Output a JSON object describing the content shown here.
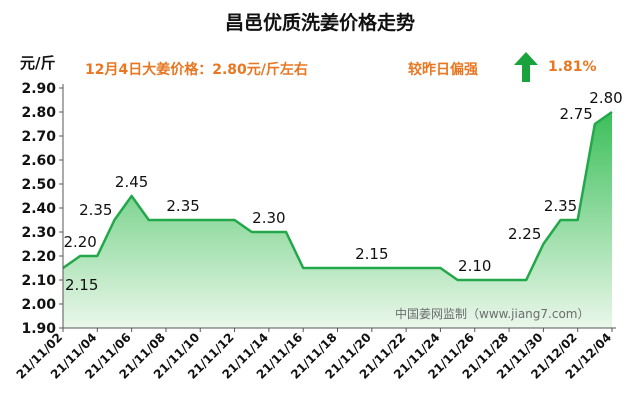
{
  "chart_data": {
    "type": "area",
    "title": "昌邑优质洗姜价格走势",
    "ylabel": "元/斤",
    "annotation": "12月4日大姜价格：2.80元/斤左右",
    "compare_label": "较昨日偏强",
    "change": "1.81%",
    "trend": "up",
    "watermark": "中国姜网监制（www.jiang7.com）",
    "ylim": [
      1.9,
      2.9
    ],
    "yticks": [
      "1.90",
      "2.00",
      "2.10",
      "2.20",
      "2.30",
      "2.40",
      "2.50",
      "2.60",
      "2.70",
      "2.80",
      "2.90"
    ],
    "xticks": [
      "21/11/02",
      "21/11/04",
      "21/11/06",
      "21/11/08",
      "21/11/10",
      "21/11/12",
      "21/11/14",
      "21/11/16",
      "21/11/18",
      "21/11/20",
      "21/11/22",
      "21/11/24",
      "21/11/26",
      "21/11/28",
      "21/11/30",
      "21/12/02",
      "21/12/04"
    ],
    "series": [
      {
        "x": [
          "21/11/02",
          "21/11/03",
          "21/11/04",
          "21/11/05",
          "21/11/06",
          "21/11/07",
          "21/11/08",
          "21/11/09",
          "21/11/10",
          "21/11/11",
          "21/11/12",
          "21/11/13",
          "21/11/14",
          "21/11/15",
          "21/11/16",
          "21/11/17",
          "21/11/18",
          "21/11/19",
          "21/11/20",
          "21/11/21",
          "21/11/22",
          "21/11/23",
          "21/11/24",
          "21/11/25",
          "21/11/26",
          "21/11/27",
          "21/11/28",
          "21/11/29",
          "21/11/30",
          "21/12/01",
          "21/12/02",
          "21/12/03",
          "21/12/04"
        ],
        "values": [
          2.15,
          2.2,
          2.2,
          2.35,
          2.45,
          2.35,
          2.35,
          2.35,
          2.35,
          2.35,
          2.35,
          2.3,
          2.3,
          2.3,
          2.15,
          2.15,
          2.15,
          2.15,
          2.15,
          2.15,
          2.15,
          2.15,
          2.15,
          2.1,
          2.1,
          2.1,
          2.1,
          2.1,
          2.25,
          2.35,
          2.35,
          2.75,
          2.8
        ]
      }
    ],
    "data_labels": [
      {
        "x": "21/11/02",
        "text": "2.15",
        "pos": "below"
      },
      {
        "x": "21/11/03",
        "text": "2.20",
        "pos": "above"
      },
      {
        "x": "21/11/05",
        "text": "2.35",
        "pos": "left"
      },
      {
        "x": "21/11/06",
        "text": "2.45",
        "pos": "above"
      },
      {
        "x": "21/11/09",
        "text": "2.35",
        "pos": "above"
      },
      {
        "x": "21/11/14",
        "text": "2.30",
        "pos": "above"
      },
      {
        "x": "21/11/20",
        "text": "2.15",
        "pos": "above"
      },
      {
        "x": "21/11/26",
        "text": "2.10",
        "pos": "above"
      },
      {
        "x": "21/11/30",
        "text": "2.25",
        "pos": "left"
      },
      {
        "x": "21/12/01",
        "text": "2.35",
        "pos": "above"
      },
      {
        "x": "21/12/03",
        "text": "2.75",
        "pos": "left"
      },
      {
        "x": "21/12/04",
        "text": "2.80",
        "pos": "above"
      }
    ],
    "grid": false,
    "colors": {
      "line": "#22a84a",
      "fill_top": "#3cbf5a",
      "fill_bottom": "#eaf7ea",
      "accent": "#e87722",
      "arrow": "#1aa33c",
      "axis": "#555555"
    }
  }
}
